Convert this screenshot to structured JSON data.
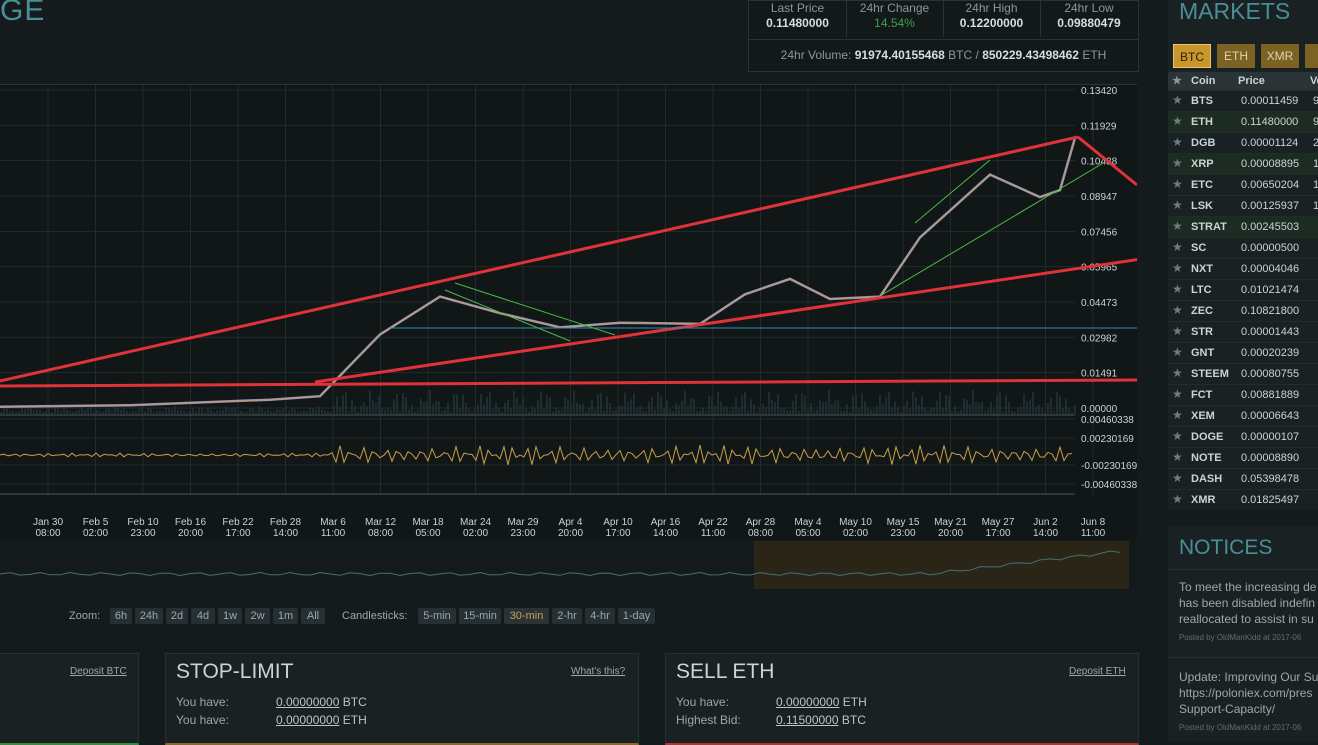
{
  "brand": {
    "text": "GE"
  },
  "stats": {
    "last_price": {
      "label": "Last Price",
      "value": "0.11480000"
    },
    "change": {
      "label": "24hr Change",
      "value": "14.54%"
    },
    "high": {
      "label": "24hr High",
      "value": "0.12200000"
    },
    "low": {
      "label": "24hr Low",
      "value": "0.09880479"
    },
    "volume": {
      "label": "24hr Volume:",
      "btc": "91974.40155468",
      "btc_unit": "BTC /",
      "eth": "850229.43498462",
      "eth_unit": "ETH"
    }
  },
  "chart": {
    "y_ticks": [
      "0.13420",
      "0.11929",
      "0.10438",
      "0.08947",
      "0.07456",
      "0.05965",
      "0.04473",
      "0.02982",
      "0.01491",
      "0.00000"
    ],
    "ind_ticks": [
      "0.00460338",
      "0.00230169",
      "-0.00230169",
      "-0.00460338"
    ],
    "x_ticks": [
      {
        "d": "Jan 30",
        "t": "08:00"
      },
      {
        "d": "Feb 5",
        "t": "02:00"
      },
      {
        "d": "Feb 10",
        "t": "23:00"
      },
      {
        "d": "Feb 16",
        "t": "20:00"
      },
      {
        "d": "Feb 22",
        "t": "17:00"
      },
      {
        "d": "Feb 28",
        "t": "14:00"
      },
      {
        "d": "Mar 6",
        "t": "11:00"
      },
      {
        "d": "Mar 12",
        "t": "08:00"
      },
      {
        "d": "Mar 18",
        "t": "05:00"
      },
      {
        "d": "Mar 24",
        "t": "02:00"
      },
      {
        "d": "Mar 29",
        "t": "23:00"
      },
      {
        "d": "Apr 4",
        "t": "20:00"
      },
      {
        "d": "Apr 10",
        "t": "17:00"
      },
      {
        "d": "Apr 16",
        "t": "14:00"
      },
      {
        "d": "Apr 22",
        "t": "11:00"
      },
      {
        "d": "Apr 28",
        "t": "08:00"
      },
      {
        "d": "May 4",
        "t": "05:00"
      },
      {
        "d": "May 10",
        "t": "02:00"
      },
      {
        "d": "May 15",
        "t": "23:00"
      },
      {
        "d": "May 21",
        "t": "20:00"
      },
      {
        "d": "May 27",
        "t": "17:00"
      },
      {
        "d": "Jun 2",
        "t": "14:00"
      },
      {
        "d": "Jun 8",
        "t": "11:00"
      }
    ]
  },
  "chart_data": {
    "type": "line",
    "x": [
      "Jan 30",
      "Feb 16",
      "Mar 6",
      "Mar 12",
      "Mar 18",
      "Mar 24",
      "Mar 29",
      "Apr 4",
      "Apr 10",
      "Apr 22",
      "Apr 28",
      "May 4",
      "May 10",
      "May 15",
      "May 21",
      "May 27",
      "Jun 2",
      "Jun 8",
      "Jun 10"
    ],
    "series": [
      {
        "values": [
          0.0005,
          0.0012,
          0.0035,
          0.005,
          0.031,
          0.047,
          0.04,
          0.034,
          0.036,
          0.0355,
          0.048,
          0.0545,
          0.046,
          0.047,
          0.072,
          0.0985,
          0.089,
          0.092,
          0.114
        ]
      }
    ],
    "ylim": [
      0,
      0.1342
    ],
    "indicator_range": [
      -0.00460338,
      0.00460338
    ],
    "grid": true
  },
  "controls": {
    "zoom_label": "Zoom:",
    "zoom": [
      "6h",
      "24h",
      "2d",
      "4d",
      "1w",
      "2w",
      "1m",
      "All"
    ],
    "candles_label": "Candlesticks:",
    "candles": [
      "5-min",
      "15-min",
      "30-min",
      "2-hr",
      "4-hr",
      "1-day"
    ],
    "candles_active": "30-min"
  },
  "panels": {
    "left": {
      "link": "Deposit BTC"
    },
    "stop": {
      "title": "STOP-LIMIT",
      "link": "What's this?",
      "r1_label": "You have:",
      "r1_value": "0.00000000",
      "r1_unit": "BTC",
      "r2_label": "You have:",
      "r2_value": "0.00000000",
      "r2_unit": "ETH"
    },
    "sell": {
      "title": "SELL ETH",
      "link": "Deposit ETH",
      "r1_label": "You have:",
      "r1_value": "0.00000000",
      "r1_unit": "ETH",
      "r2_label": "Highest Bid:",
      "r2_value": "0.11500000",
      "r2_unit": "BTC"
    }
  },
  "markets": {
    "title": "MARKETS",
    "tabs": [
      "BTC",
      "ETH",
      "XMR"
    ],
    "columns": [
      "Coin",
      "Price",
      "Vo"
    ],
    "rows": [
      {
        "coin": "BTS",
        "price": "0.00011459",
        "vol": "9"
      },
      {
        "coin": "ETH",
        "price": "0.11480000",
        "vol": "9"
      },
      {
        "coin": "DGB",
        "price": "0.00001124",
        "vol": "2"
      },
      {
        "coin": "XRP",
        "price": "0.00008895",
        "vol": "1"
      },
      {
        "coin": "ETC",
        "price": "0.00650204",
        "vol": "1"
      },
      {
        "coin": "LSK",
        "price": "0.00125937",
        "vol": "1"
      },
      {
        "coin": "STRAT",
        "price": "0.00245503",
        "vol": ""
      },
      {
        "coin": "SC",
        "price": "0.00000500",
        "vol": ""
      },
      {
        "coin": "NXT",
        "price": "0.00004046",
        "vol": ""
      },
      {
        "coin": "LTC",
        "price": "0.01021474",
        "vol": ""
      },
      {
        "coin": "ZEC",
        "price": "0.10821800",
        "vol": ""
      },
      {
        "coin": "STR",
        "price": "0.00001443",
        "vol": ""
      },
      {
        "coin": "GNT",
        "price": "0.00020239",
        "vol": ""
      },
      {
        "coin": "STEEM",
        "price": "0.00080755",
        "vol": ""
      },
      {
        "coin": "FCT",
        "price": "0.00881889",
        "vol": ""
      },
      {
        "coin": "XEM",
        "price": "0.00006643",
        "vol": ""
      },
      {
        "coin": "DOGE",
        "price": "0.00000107",
        "vol": ""
      },
      {
        "coin": "NOTE",
        "price": "0.00008890",
        "vol": ""
      },
      {
        "coin": "DASH",
        "price": "0.05398478",
        "vol": ""
      },
      {
        "coin": "XMR",
        "price": "0.01825497",
        "vol": ""
      }
    ]
  },
  "notices": {
    "title": "NOTICES",
    "n1": {
      "l1": "To meet the increasing de",
      "l2": "has been disabled indefin",
      "l3": "reallocated to assist in su",
      "meta": "Posted by OldManKidd at 2017-06"
    },
    "n2": {
      "l1": "Update: Improving Our Su",
      "l2": "https://poloniex.com/pres",
      "l3": "Support-Capacity/",
      "meta": "Posted by OldManKidd at 2017-06"
    }
  }
}
